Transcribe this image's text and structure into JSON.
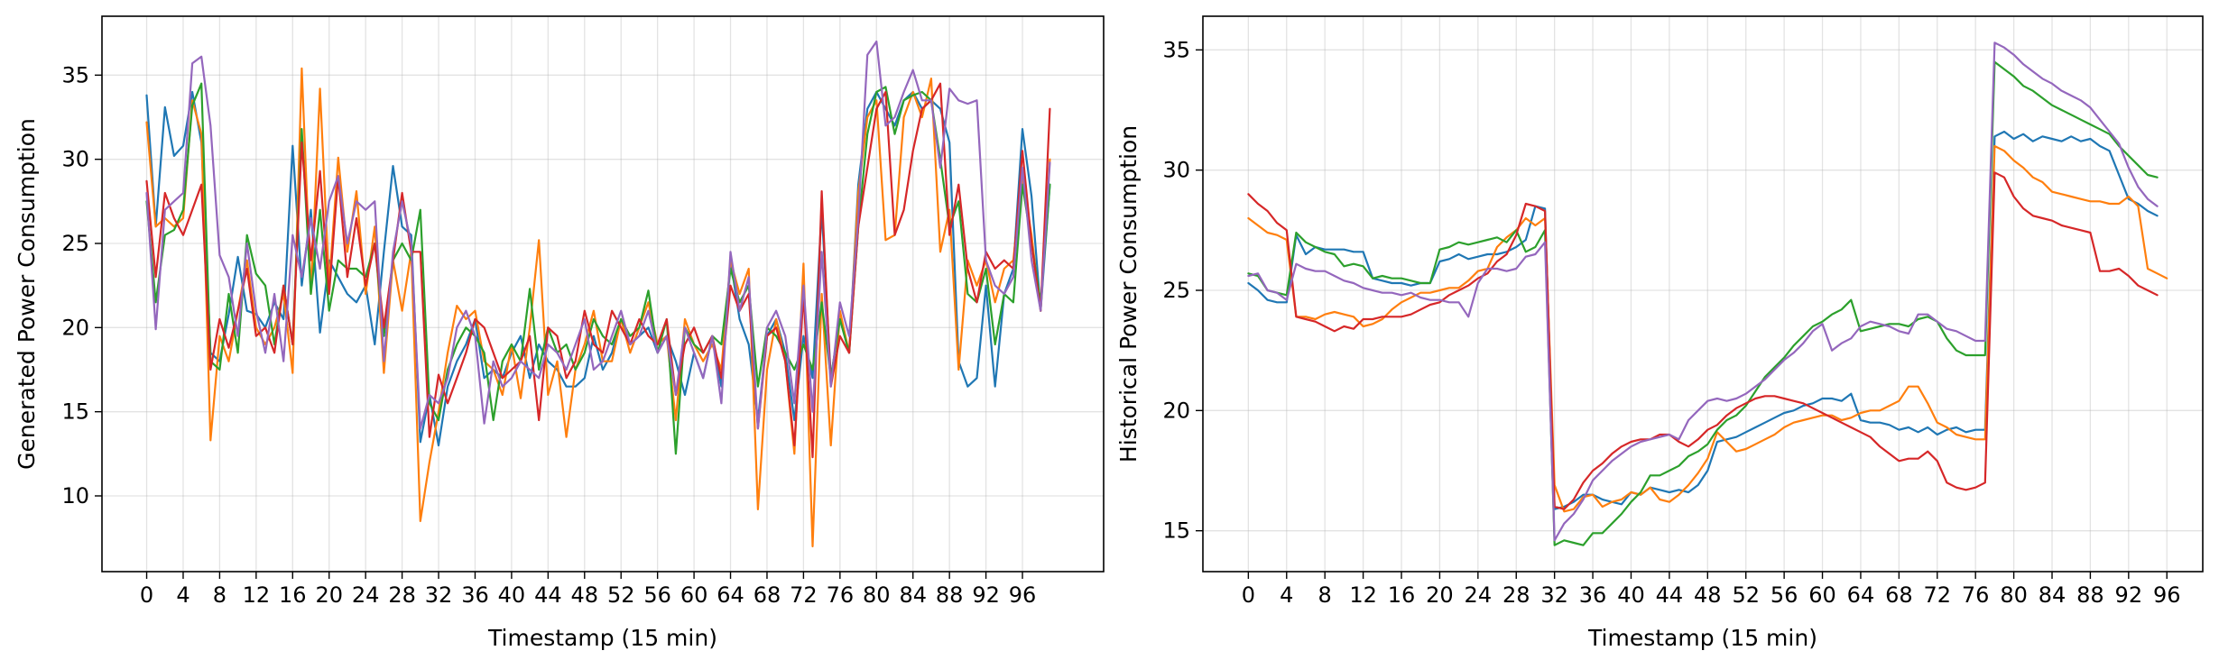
{
  "colors": [
    "#1f77b4",
    "#ff7f0e",
    "#2ca02c",
    "#d62728",
    "#9467bd"
  ],
  "chart_data": [
    {
      "type": "line",
      "title": "",
      "xlabel": "Timestamp (15 min)",
      "ylabel": "Generated Power Consumption",
      "xlim": [
        -4.9,
        104.9
      ],
      "ylim": [
        5.5,
        38.5
      ],
      "xticks": [
        0,
        4,
        8,
        12,
        16,
        20,
        24,
        28,
        32,
        36,
        40,
        44,
        48,
        52,
        56,
        60,
        64,
        68,
        72,
        76,
        80,
        84,
        88,
        92,
        96
      ],
      "yticks": [
        10,
        15,
        20,
        25,
        30,
        35
      ],
      "grid": true,
      "legend": "none",
      "series": [
        {
          "values": [
            33.8,
            26.0,
            33.1,
            30.2,
            30.8,
            34.0,
            31.0,
            18.5,
            18.0,
            20.8,
            24.2,
            21.0,
            20.8,
            20.0,
            21.5,
            20.5,
            30.8,
            22.5,
            27.0,
            19.7,
            24.0,
            23.0,
            22.0,
            21.5,
            22.5,
            19.0,
            24.5,
            29.6,
            26.0,
            25.5,
            13.2,
            16.0,
            13.0,
            16.5,
            18.0,
            19.0,
            20.5,
            17.0,
            17.5,
            17.0,
            18.5,
            19.5,
            17.0,
            19.0,
            18.0,
            17.5,
            16.5,
            16.5,
            17.0,
            19.5,
            17.5,
            18.5,
            20.5,
            19.0,
            19.5,
            20.0,
            18.5,
            19.5,
            18.0,
            16.0,
            18.5,
            17.0,
            19.5,
            16.5,
            24.0,
            20.5,
            19.0,
            14.5,
            19.5,
            20.5,
            18.5,
            14.5,
            19.5,
            17.0,
            27.0,
            17.0,
            20.5,
            18.5,
            28.5,
            33.0,
            34.0,
            33.0,
            32.0,
            33.5,
            34.0,
            33.0,
            33.5,
            33.0,
            31.0,
            18.0,
            16.5,
            17.0,
            22.5,
            16.5,
            22.0,
            23.5,
            31.8,
            27.8,
            21.0,
            28.5
          ]
        },
        {
          "values": [
            32.2,
            26.0,
            26.5,
            26.0,
            26.5,
            33.5,
            31.5,
            13.3,
            19.5,
            18.0,
            21.0,
            24.0,
            20.0,
            19.0,
            20.0,
            22.0,
            17.3,
            35.4,
            22.0,
            34.2,
            22.5,
            30.1,
            24.5,
            28.1,
            22.0,
            26.0,
            17.3,
            24.0,
            21.0,
            24.5,
            8.5,
            12.0,
            15.0,
            18.5,
            21.3,
            20.5,
            21.0,
            18.0,
            17.5,
            16.0,
            19.0,
            15.8,
            20.0,
            25.2,
            16.0,
            18.0,
            13.5,
            17.5,
            19.0,
            21.0,
            18.0,
            18.0,
            20.5,
            18.5,
            20.0,
            21.5,
            19.0,
            19.5,
            14.5,
            20.5,
            19.0,
            18.0,
            19.0,
            17.5,
            24.0,
            22.0,
            23.5,
            9.2,
            17.5,
            20.5,
            18.0,
            12.5,
            23.8,
            7.0,
            22.0,
            13.0,
            21.0,
            18.5,
            28.0,
            32.5,
            33.5,
            25.2,
            25.5,
            32.5,
            34.0,
            32.5,
            34.8,
            24.5,
            27.0,
            17.5,
            24.0,
            22.5,
            24.0,
            21.5,
            23.5,
            24.0,
            29.0,
            25.5,
            21.0,
            30.0
          ]
        },
        {
          "values": [
            27.5,
            21.5,
            25.5,
            25.8,
            27.0,
            33.2,
            34.5,
            18.0,
            17.5,
            22.0,
            18.5,
            25.5,
            23.2,
            22.5,
            19.0,
            22.5,
            19.0,
            31.8,
            22.0,
            27.0,
            21.0,
            24.0,
            23.5,
            23.5,
            23.0,
            25.0,
            19.5,
            24.0,
            25.0,
            24.0,
            27.0,
            15.5,
            14.5,
            17.5,
            19.0,
            20.0,
            19.5,
            18.5,
            14.5,
            18.0,
            19.0,
            18.0,
            22.3,
            17.5,
            20.0,
            18.5,
            19.0,
            17.5,
            18.5,
            20.5,
            19.5,
            19.0,
            20.5,
            19.5,
            20.0,
            22.2,
            18.5,
            20.5,
            12.5,
            20.0,
            19.0,
            18.5,
            19.5,
            19.0,
            23.5,
            21.5,
            22.5,
            16.5,
            20.0,
            19.5,
            18.5,
            17.5,
            19.0,
            17.5,
            21.5,
            17.0,
            20.5,
            18.5,
            26.0,
            31.5,
            34.0,
            34.3,
            31.5,
            33.5,
            33.8,
            34.0,
            33.5,
            30.0,
            26.0,
            27.5,
            22.0,
            21.5,
            23.5,
            19.0,
            22.0,
            21.5,
            28.5,
            25.0,
            21.5,
            28.5
          ]
        },
        {
          "values": [
            28.7,
            23.0,
            28.0,
            26.5,
            25.5,
            27.0,
            28.5,
            17.5,
            20.5,
            18.8,
            21.0,
            23.5,
            19.5,
            20.0,
            18.5,
            22.5,
            19.0,
            31.0,
            24.0,
            29.3,
            22.0,
            29.0,
            23.0,
            26.5,
            22.5,
            25.0,
            20.0,
            24.0,
            28.0,
            24.5,
            24.5,
            13.5,
            17.2,
            15.5,
            17.0,
            18.5,
            20.5,
            20.0,
            18.5,
            17.0,
            17.5,
            18.0,
            19.5,
            14.5,
            20.0,
            19.5,
            17.0,
            18.0,
            21.0,
            19.0,
            18.5,
            21.0,
            20.0,
            19.0,
            20.5,
            19.5,
            19.0,
            20.5,
            16.0,
            19.0,
            20.0,
            18.5,
            19.5,
            17.0,
            22.5,
            21.0,
            22.0,
            14.0,
            19.5,
            20.0,
            18.0,
            13.0,
            22.0,
            12.3,
            28.1,
            16.5,
            19.5,
            18.5,
            26.0,
            29.5,
            33.0,
            34.0,
            25.5,
            27.0,
            30.5,
            33.0,
            33.5,
            34.5,
            25.5,
            28.5,
            23.5,
            21.5,
            24.5,
            23.5,
            24.0,
            23.5,
            30.5,
            25.0,
            21.0,
            33.0
          ]
        },
        {
          "values": [
            28.0,
            19.9,
            27.0,
            27.5,
            28.0,
            35.7,
            36.1,
            32.0,
            24.3,
            23.0,
            19.5,
            25.0,
            21.0,
            18.5,
            22.0,
            18.0,
            25.5,
            23.0,
            26.5,
            23.5,
            27.5,
            29.0,
            25.0,
            27.5,
            27.0,
            27.5,
            18.0,
            24.5,
            27.5,
            25.0,
            14.0,
            16.0,
            15.5,
            17.0,
            20.0,
            21.0,
            19.5,
            14.3,
            18.0,
            16.5,
            17.0,
            18.0,
            17.5,
            17.0,
            19.0,
            18.5,
            17.5,
            19.0,
            20.5,
            17.5,
            18.0,
            19.5,
            21.0,
            19.0,
            19.5,
            21.0,
            18.5,
            19.5,
            16.0,
            20.0,
            18.5,
            17.0,
            19.5,
            15.5,
            24.5,
            21.0,
            23.0,
            14.0,
            20.0,
            21.0,
            19.5,
            15.5,
            22.5,
            15.0,
            24.5,
            16.5,
            21.5,
            19.5,
            26.5,
            36.2,
            37.0,
            32.0,
            32.5,
            34.0,
            35.3,
            33.5,
            33.5,
            29.5,
            34.2,
            33.5,
            33.3,
            33.5,
            24.0,
            22.5,
            22.0,
            23.0,
            29.5,
            24.0,
            21.0,
            29.8
          ]
        }
      ]
    },
    {
      "type": "line",
      "title": "",
      "xlabel": "Timestamp (15 min)",
      "ylabel": "Historical Power Consumption",
      "xlim": [
        -4.75,
        99.75
      ],
      "ylim": [
        13.3,
        36.4
      ],
      "xticks": [
        0,
        4,
        8,
        12,
        16,
        20,
        24,
        28,
        32,
        36,
        40,
        44,
        48,
        52,
        56,
        60,
        64,
        68,
        72,
        76,
        80,
        84,
        88,
        92,
        96
      ],
      "yticks": [
        15,
        20,
        25,
        30,
        35
      ],
      "grid": true,
      "legend": "none",
      "series": [
        {
          "values": [
            25.3,
            25.0,
            24.6,
            24.5,
            24.5,
            27.3,
            26.5,
            26.8,
            26.7,
            26.7,
            26.7,
            26.6,
            26.6,
            25.5,
            25.4,
            25.3,
            25.3,
            25.2,
            25.3,
            25.3,
            26.2,
            26.3,
            26.5,
            26.3,
            26.4,
            26.5,
            26.5,
            26.6,
            26.8,
            27.1,
            28.5,
            28.4,
            15.9,
            16.0,
            16.2,
            16.5,
            16.5,
            16.3,
            16.2,
            16.1,
            16.6,
            16.5,
            16.8,
            16.7,
            16.6,
            16.7,
            16.6,
            16.9,
            17.5,
            18.7,
            18.8,
            18.9,
            19.1,
            19.3,
            19.5,
            19.7,
            19.9,
            20.0,
            20.2,
            20.3,
            20.5,
            20.5,
            20.4,
            20.7,
            19.6,
            19.5,
            19.5,
            19.4,
            19.2,
            19.3,
            19.1,
            19.3,
            19.0,
            19.2,
            19.3,
            19.1,
            19.2,
            19.2,
            31.4,
            31.6,
            31.3,
            31.5,
            31.2,
            31.4,
            31.3,
            31.2,
            31.4,
            31.2,
            31.3,
            31.0,
            30.8,
            29.8,
            28.8,
            28.6,
            28.3,
            28.1
          ]
        },
        {
          "values": [
            28.0,
            27.7,
            27.4,
            27.3,
            27.1,
            23.9,
            23.9,
            23.8,
            24.0,
            24.1,
            24.0,
            23.9,
            23.5,
            23.6,
            23.8,
            24.2,
            24.5,
            24.7,
            24.9,
            24.9,
            25.0,
            25.1,
            25.1,
            25.4,
            25.8,
            25.9,
            26.8,
            27.2,
            27.5,
            28.0,
            27.7,
            28.0,
            16.9,
            15.8,
            15.9,
            16.4,
            16.5,
            16.0,
            16.2,
            16.3,
            16.6,
            16.5,
            16.8,
            16.3,
            16.2,
            16.5,
            16.9,
            17.4,
            18.0,
            19.1,
            18.7,
            18.3,
            18.4,
            18.6,
            18.8,
            19.0,
            19.3,
            19.5,
            19.6,
            19.7,
            19.8,
            19.8,
            19.6,
            19.7,
            19.9,
            20.0,
            20.0,
            20.2,
            20.4,
            21.0,
            21.0,
            20.3,
            19.5,
            19.3,
            19.0,
            18.9,
            18.8,
            18.8,
            31.0,
            30.8,
            30.4,
            30.1,
            29.7,
            29.5,
            29.1,
            29.0,
            28.9,
            28.8,
            28.7,
            28.7,
            28.6,
            28.6,
            28.9,
            28.5,
            25.9,
            25.7,
            25.5
          ]
        },
        {
          "values": [
            25.7,
            25.6,
            25.0,
            24.9,
            24.8,
            27.4,
            27.0,
            26.8,
            26.6,
            26.5,
            26.0,
            26.1,
            26.0,
            25.5,
            25.6,
            25.5,
            25.5,
            25.4,
            25.3,
            25.3,
            26.7,
            26.8,
            27.0,
            26.9,
            27.0,
            27.1,
            27.2,
            27.0,
            27.5,
            26.6,
            26.8,
            27.5,
            14.4,
            14.6,
            14.5,
            14.4,
            14.9,
            14.9,
            15.3,
            15.7,
            16.2,
            16.6,
            17.3,
            17.3,
            17.5,
            17.7,
            18.1,
            18.3,
            18.6,
            19.2,
            19.6,
            19.8,
            20.2,
            20.8,
            21.4,
            21.8,
            22.2,
            22.7,
            23.1,
            23.5,
            23.7,
            24.0,
            24.2,
            24.6,
            23.3,
            23.4,
            23.5,
            23.6,
            23.6,
            23.5,
            23.8,
            23.9,
            23.7,
            23.0,
            22.5,
            22.3,
            22.3,
            22.3,
            34.5,
            34.2,
            33.9,
            33.5,
            33.3,
            33.0,
            32.7,
            32.5,
            32.3,
            32.1,
            31.9,
            31.7,
            31.5,
            31.0,
            30.6,
            30.2,
            29.8,
            29.7
          ]
        },
        {
          "values": [
            29.0,
            28.6,
            28.3,
            27.8,
            27.5,
            23.9,
            23.8,
            23.7,
            23.5,
            23.3,
            23.5,
            23.4,
            23.8,
            23.8,
            23.9,
            23.9,
            23.9,
            24.0,
            24.2,
            24.4,
            24.5,
            24.8,
            25.0,
            25.2,
            25.5,
            25.7,
            26.2,
            26.5,
            27.3,
            28.6,
            28.5,
            28.3,
            16.0,
            15.9,
            16.3,
            17.0,
            17.5,
            17.8,
            18.2,
            18.5,
            18.7,
            18.8,
            18.8,
            19.0,
            19.0,
            18.7,
            18.5,
            18.8,
            19.2,
            19.4,
            19.8,
            20.1,
            20.3,
            20.5,
            20.6,
            20.6,
            20.5,
            20.4,
            20.3,
            20.1,
            19.9,
            19.7,
            19.5,
            19.3,
            19.1,
            18.9,
            18.5,
            18.2,
            17.9,
            18.0,
            18.0,
            18.3,
            17.9,
            17.0,
            16.8,
            16.7,
            16.8,
            17.0,
            29.9,
            29.7,
            28.9,
            28.4,
            28.1,
            28.0,
            27.9,
            27.7,
            27.6,
            27.5,
            27.4,
            25.8,
            25.8,
            25.9,
            25.6,
            25.2,
            25.0,
            24.8
          ]
        },
        {
          "values": [
            25.6,
            25.7,
            25.0,
            24.9,
            24.6,
            26.1,
            25.9,
            25.8,
            25.8,
            25.6,
            25.4,
            25.3,
            25.1,
            25.0,
            24.9,
            24.9,
            24.8,
            24.9,
            24.7,
            24.6,
            24.6,
            24.5,
            24.5,
            23.9,
            25.3,
            25.9,
            25.9,
            25.8,
            25.9,
            26.4,
            26.5,
            27.0,
            14.6,
            15.3,
            15.7,
            16.3,
            17.1,
            17.5,
            17.9,
            18.2,
            18.5,
            18.7,
            18.8,
            18.9,
            19.0,
            18.8,
            19.6,
            20.0,
            20.4,
            20.5,
            20.4,
            20.5,
            20.7,
            21.0,
            21.3,
            21.7,
            22.1,
            22.4,
            22.8,
            23.3,
            23.6,
            22.5,
            22.8,
            23.0,
            23.5,
            23.7,
            23.6,
            23.5,
            23.3,
            23.2,
            24.0,
            24.0,
            23.7,
            23.4,
            23.3,
            23.1,
            22.9,
            22.9,
            35.3,
            35.1,
            34.8,
            34.4,
            34.1,
            33.8,
            33.6,
            33.3,
            33.1,
            32.9,
            32.6,
            32.1,
            31.6,
            31.1,
            30.1,
            29.3,
            28.8,
            28.5
          ]
        }
      ]
    }
  ]
}
